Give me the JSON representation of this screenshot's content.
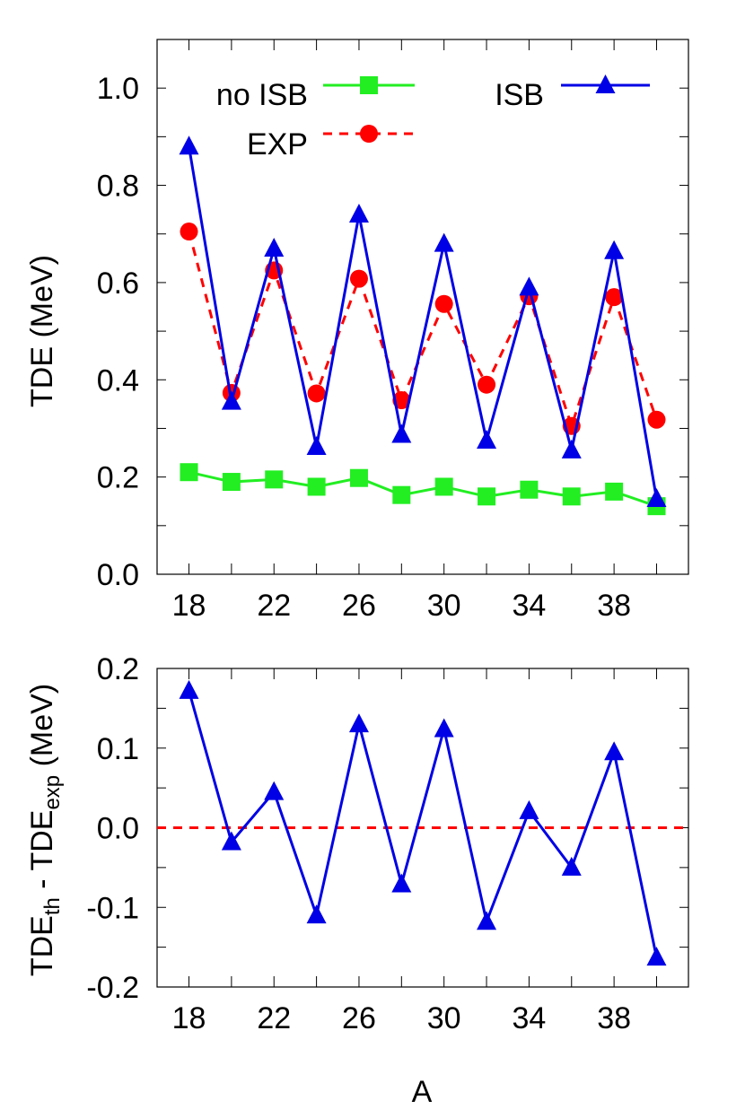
{
  "colors": {
    "no_isb": "#22ee22",
    "exp": "#ff0000",
    "isb": "#0000e6",
    "zero_line": "#ff0000",
    "axis": "#000000"
  },
  "chart_data": [
    {
      "type": "line",
      "ylabel": "TDE (MeV)",
      "xlabel": "",
      "xlim": [
        16.5,
        41.5
      ],
      "ylim": [
        0.0,
        1.1
      ],
      "x_ticks": [
        "18",
        "22",
        "26",
        "30",
        "34",
        "38"
      ],
      "y_ticks": [
        "0.0",
        "0.2",
        "0.4",
        "0.6",
        "0.8",
        "1.0"
      ],
      "x": [
        18,
        20,
        22,
        24,
        26,
        28,
        30,
        32,
        34,
        36,
        38,
        40
      ],
      "series": [
        {
          "name": "no ISB",
          "key": "no_isb",
          "marker": "square",
          "dash": "solid",
          "values": [
            0.21,
            0.19,
            0.195,
            0.18,
            0.198,
            0.163,
            0.18,
            0.16,
            0.174,
            0.16,
            0.17,
            0.14
          ]
        },
        {
          "name": "EXP",
          "key": "exp",
          "marker": "circle",
          "dash": "dashed",
          "values": [
            0.705,
            0.373,
            0.625,
            0.372,
            0.608,
            0.358,
            0.556,
            0.39,
            0.572,
            0.305,
            0.57,
            0.318
          ]
        },
        {
          "name": "ISB",
          "key": "isb",
          "marker": "triangle",
          "dash": "solid",
          "values": [
            0.88,
            0.355,
            0.67,
            0.262,
            0.74,
            0.287,
            0.68,
            0.275,
            0.59,
            0.255,
            0.665,
            0.155
          ]
        }
      ],
      "legend": [
        {
          "label": "no ISB",
          "key": "no_isb"
        },
        {
          "label": "EXP",
          "key": "exp"
        },
        {
          "label": "ISB",
          "key": "isb"
        }
      ],
      "legend_position": "top"
    },
    {
      "type": "line",
      "ylabel_main": "TDE",
      "ylabel_sub1": "th",
      "ylabel_mid": " - TDE",
      "ylabel_sub2": "exp",
      "ylabel_unit": " (MeV)",
      "xlabel": "A",
      "xlim": [
        16.5,
        41.5
      ],
      "ylim": [
        -0.2,
        0.2
      ],
      "x_ticks": [
        "18",
        "22",
        "26",
        "30",
        "34",
        "38"
      ],
      "y_ticks": [
        "-0.2",
        "-0.1",
        "0.0",
        "0.1",
        "0.2"
      ],
      "reference_line": 0.0,
      "x": [
        18,
        20,
        22,
        24,
        26,
        28,
        30,
        32,
        34,
        36,
        38,
        40
      ],
      "series": [
        {
          "key": "isb",
          "marker": "triangle",
          "dash": "solid",
          "values": [
            0.172,
            -0.018,
            0.045,
            -0.11,
            0.13,
            -0.071,
            0.124,
            -0.118,
            0.021,
            -0.05,
            0.095,
            -0.163
          ]
        }
      ]
    }
  ]
}
